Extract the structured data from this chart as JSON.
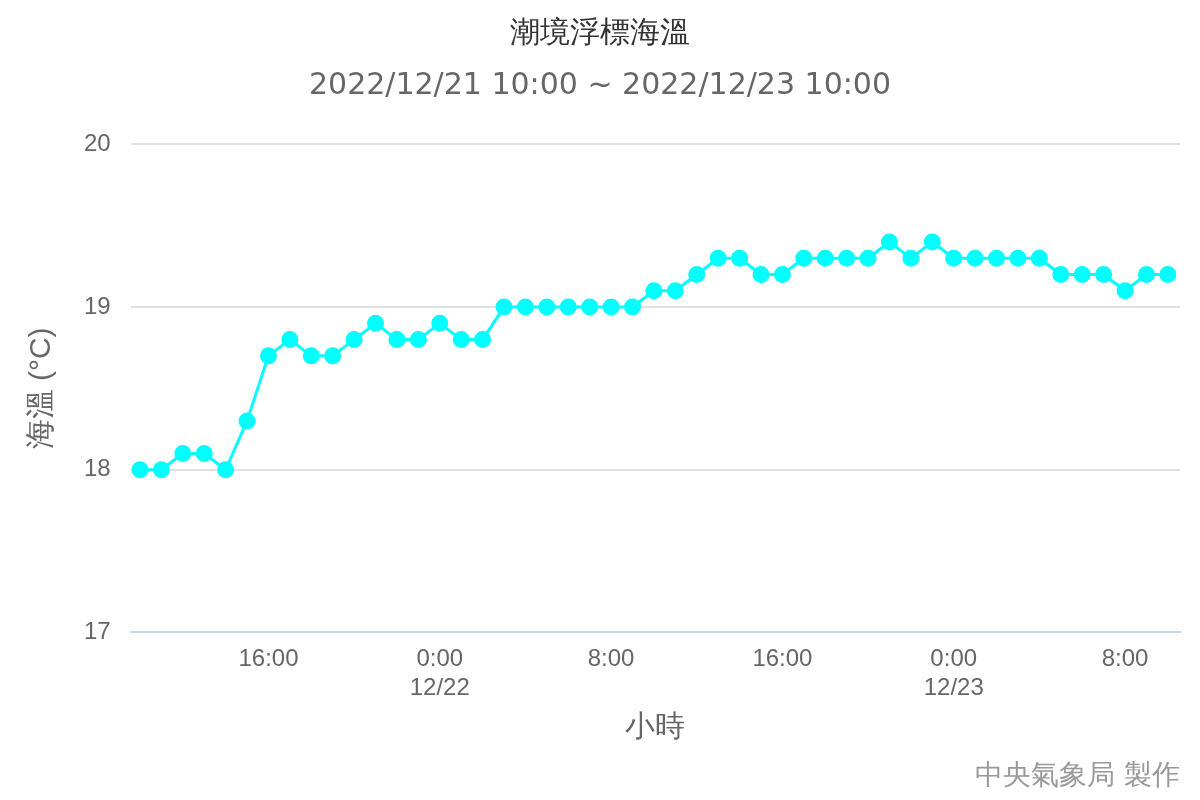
{
  "chart_data": {
    "type": "line",
    "title": "潮境浮標海溫",
    "subtitle": "2022/12/21 10:00 ~ 2022/12/23 10:00",
    "xlabel": "小時",
    "ylabel": "海溫 (°C)",
    "x": [
      "2022-12-21T10:00",
      "2022-12-21T11:00",
      "2022-12-21T12:00",
      "2022-12-21T13:00",
      "2022-12-21T14:00",
      "2022-12-21T15:00",
      "2022-12-21T16:00",
      "2022-12-21T17:00",
      "2022-12-21T18:00",
      "2022-12-21T19:00",
      "2022-12-21T20:00",
      "2022-12-21T21:00",
      "2022-12-21T22:00",
      "2022-12-21T23:00",
      "2022-12-22T00:00",
      "2022-12-22T01:00",
      "2022-12-22T02:00",
      "2022-12-22T03:00",
      "2022-12-22T04:00",
      "2022-12-22T05:00",
      "2022-12-22T06:00",
      "2022-12-22T07:00",
      "2022-12-22T08:00",
      "2022-12-22T09:00",
      "2022-12-22T10:00",
      "2022-12-22T11:00",
      "2022-12-22T12:00",
      "2022-12-22T13:00",
      "2022-12-22T14:00",
      "2022-12-22T15:00",
      "2022-12-22T16:00",
      "2022-12-22T17:00",
      "2022-12-22T18:00",
      "2022-12-22T19:00",
      "2022-12-22T20:00",
      "2022-12-22T21:00",
      "2022-12-22T22:00",
      "2022-12-22T23:00",
      "2022-12-23T00:00",
      "2022-12-23T01:00",
      "2022-12-23T02:00",
      "2022-12-23T03:00",
      "2022-12-23T04:00",
      "2022-12-23T05:00",
      "2022-12-23T06:00",
      "2022-12-23T07:00",
      "2022-12-23T08:00",
      "2022-12-23T09:00",
      "2022-12-23T10:00"
    ],
    "series": [
      {
        "color": "#00ffff",
        "values": [
          18.0,
          18.0,
          18.1,
          18.1,
          18.0,
          18.3,
          18.7,
          18.8,
          18.7,
          18.7,
          18.8,
          18.9,
          18.8,
          18.8,
          18.9,
          18.8,
          18.8,
          19.0,
          19.0,
          19.0,
          19.0,
          19.0,
          19.0,
          19.0,
          19.1,
          19.1,
          19.2,
          19.3,
          19.3,
          19.2,
          19.2,
          19.3,
          19.3,
          19.3,
          19.3,
          19.4,
          19.3,
          19.4,
          19.3,
          19.3,
          19.3,
          19.3,
          19.3,
          19.2,
          19.2,
          19.2,
          19.1,
          19.2,
          19.2
        ]
      }
    ],
    "xlim": [
      "2022-12-21T09:34",
      "2022-12-23T10:34"
    ],
    "xticks": [
      {
        "value": "2022-12-21T16:00",
        "label": "16:00"
      },
      {
        "value": "2022-12-22T00:00",
        "label": "0:00\n12/22"
      },
      {
        "value": "2022-12-22T08:00",
        "label": "8:00"
      },
      {
        "value": "2022-12-22T16:00",
        "label": "16:00"
      },
      {
        "value": "2022-12-23T00:00",
        "label": "0:00\n12/23"
      },
      {
        "value": "2022-12-23T08:00",
        "label": "8:00"
      }
    ],
    "ylim": [
      17,
      20
    ],
    "yticks": [
      17,
      18,
      19,
      20
    ],
    "grid": "y",
    "legend": false,
    "marker": "circle",
    "line_style": "solid",
    "annotations": [
      "中央氣象局 製作"
    ]
  }
}
